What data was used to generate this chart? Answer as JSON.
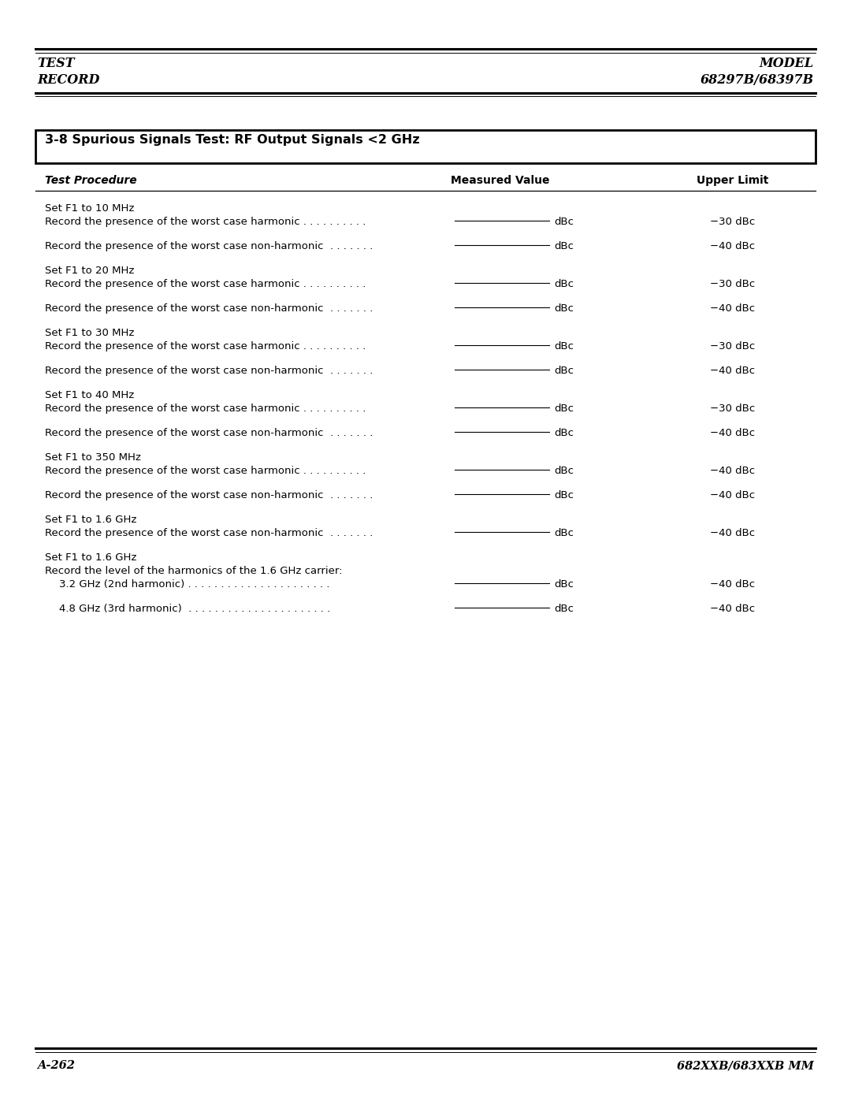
{
  "page_title_left1": "TEST",
  "page_title_left2": "RECORD",
  "page_title_right1": "MODEL",
  "page_title_right2": "68297B/68397B",
  "footer_left": "A-262",
  "footer_right": "682XXB/683XXB MM",
  "section_title": "3-8 Spurious Signals Test: RF Output Signals <2 GHz",
  "col_header0": "Test Procedure",
  "col_header1": "Measured Value",
  "col_header2": "Upper Limit",
  "bg_color": "#ffffff",
  "text_color": "#000000",
  "font_size_title": 11.5,
  "font_size_section": 11.5,
  "font_size_col_header": 10.0,
  "font_size_body": 9.5,
  "font_size_footer": 10.5,
  "rows": [
    {
      "type": "set",
      "text": "Set F1 to 10 MHz"
    },
    {
      "type": "record",
      "text": "Record the presence of the worst case harmonic . . . . . . . . . .",
      "limit": "−30 dBc"
    },
    {
      "type": "blank"
    },
    {
      "type": "record",
      "text": "Record the presence of the worst case non-harmonic  . . . . . . .",
      "limit": "−40 dBc"
    },
    {
      "type": "blank"
    },
    {
      "type": "set",
      "text": "Set F1 to 20 MHz"
    },
    {
      "type": "record",
      "text": "Record the presence of the worst case harmonic . . . . . . . . . .",
      "limit": "−30 dBc"
    },
    {
      "type": "blank"
    },
    {
      "type": "record",
      "text": "Record the presence of the worst case non-harmonic  . . . . . . .",
      "limit": "−40 dBc"
    },
    {
      "type": "blank"
    },
    {
      "type": "set",
      "text": "Set F1 to 30 MHz"
    },
    {
      "type": "record",
      "text": "Record the presence of the worst case harmonic . . . . . . . . . .",
      "limit": "−30 dBc"
    },
    {
      "type": "blank"
    },
    {
      "type": "record",
      "text": "Record the presence of the worst case non-harmonic  . . . . . . .",
      "limit": "−40 dBc"
    },
    {
      "type": "blank"
    },
    {
      "type": "set",
      "text": "Set F1 to 40 MHz"
    },
    {
      "type": "record",
      "text": "Record the presence of the worst case harmonic . . . . . . . . . .",
      "limit": "−30 dBc"
    },
    {
      "type": "blank"
    },
    {
      "type": "record",
      "text": "Record the presence of the worst case non-harmonic  . . . . . . .",
      "limit": "−40 dBc"
    },
    {
      "type": "blank"
    },
    {
      "type": "set",
      "text": "Set F1 to 350 MHz"
    },
    {
      "type": "record",
      "text": "Record the presence of the worst case harmonic . . . . . . . . . .",
      "limit": "−40 dBc"
    },
    {
      "type": "blank"
    },
    {
      "type": "record",
      "text": "Record the presence of the worst case non-harmonic  . . . . . . .",
      "limit": "−40 dBc"
    },
    {
      "type": "blank"
    },
    {
      "type": "set",
      "text": "Set F1 to 1.6 GHz"
    },
    {
      "type": "record",
      "text": "Record the presence of the worst case non-harmonic  . . . . . . .",
      "limit": "−40 dBc"
    },
    {
      "type": "blank"
    },
    {
      "type": "set",
      "text": "Set F1 to 1.6 GHz"
    },
    {
      "type": "plain",
      "text": "Record the level of the harmonics of the 1.6 GHz carrier:"
    },
    {
      "type": "record_ind",
      "text": "3.2 GHz (2nd harmonic) . . . . . . . . . . . . . . . . . . . . . .",
      "limit": "−40 dBc"
    },
    {
      "type": "blank"
    },
    {
      "type": "record_ind",
      "text": "4.8 GHz (3rd harmonic)  . . . . . . . . . . . . . . . . . . . . . .",
      "limit": "−40 dBc"
    }
  ]
}
